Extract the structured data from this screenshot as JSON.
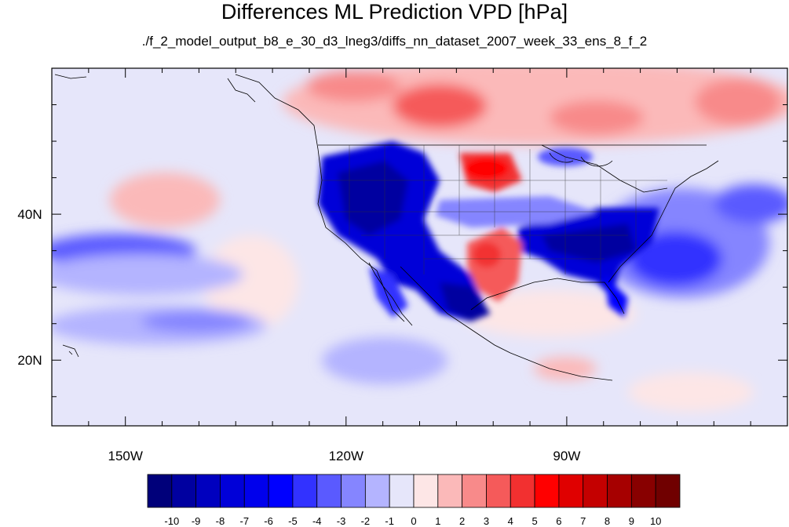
{
  "title": "Differences ML Prediction VPD [hPa]",
  "subtitle": "./f_2_model_output_b8_e_30_d3_lneg3/diffs_nn_dataset_2007_week_33_ens_8_f_2",
  "map": {
    "projection": "cylindrical",
    "lon_range": [
      -160,
      -60
    ],
    "lat_range": [
      11,
      60
    ],
    "x_ticks": [
      {
        "value": -150,
        "label": "150W"
      },
      {
        "value": -120,
        "label": "120W"
      },
      {
        "value": -90,
        "label": "90W"
      }
    ],
    "y_ticks": [
      {
        "value": 40,
        "label": "40N"
      },
      {
        "value": 20,
        "label": "20N"
      }
    ]
  },
  "colorbar": {
    "labels": [
      "-10",
      "-9",
      "-8",
      "-7",
      "-6",
      "-5",
      "-4",
      "-3",
      "-2",
      "-1",
      "0",
      "1",
      "2",
      "3",
      "4",
      "5",
      "6",
      "7",
      "8",
      "9",
      "10"
    ],
    "colors": [
      "#00007a",
      "#0000a0",
      "#0000bf",
      "#0000d8",
      "#0000ec",
      "#0000ff",
      "#3232ff",
      "#5a5aff",
      "#8585ff",
      "#b4b4ff",
      "#e6e6fa",
      "#fde6e6",
      "#fbb9b9",
      "#f88a8a",
      "#f55a5a",
      "#f23030",
      "#ff0000",
      "#e00000",
      "#c40000",
      "#a60000",
      "#880000",
      "#700000"
    ]
  }
}
